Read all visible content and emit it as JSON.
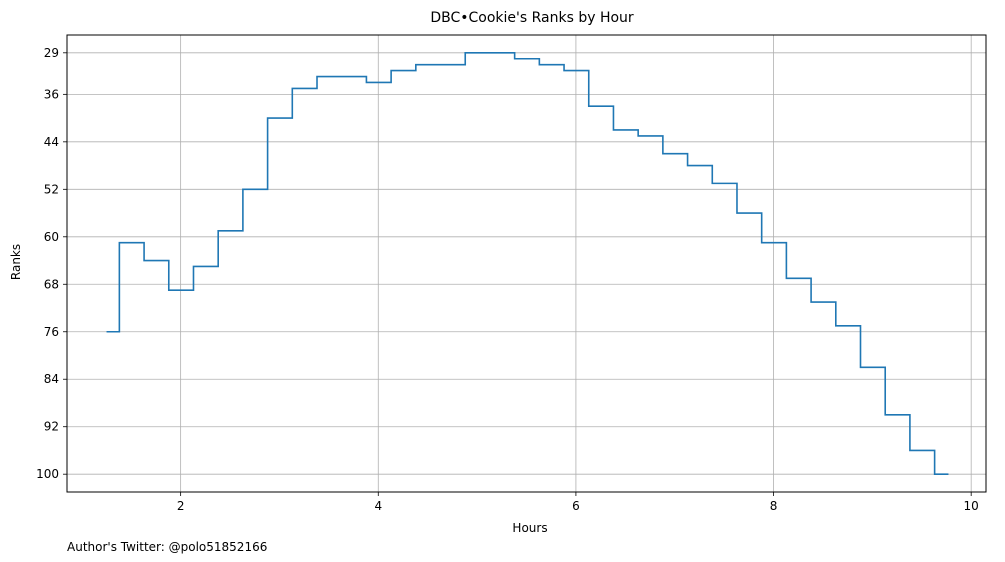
{
  "chart_data": {
    "type": "line",
    "step": "post",
    "title": "DBC•Cookie's Ranks by Hour",
    "xlabel": "Hours",
    "ylabel": "Ranks",
    "xlim": [
      0.85,
      10.15
    ],
    "ylim": [
      103,
      26
    ],
    "y_inverted": true,
    "grid": true,
    "line_color": "#1f77b4",
    "x_ticks": [
      2,
      4,
      6,
      8,
      10
    ],
    "y_ticks": [
      29,
      36,
      44,
      52,
      60,
      68,
      76,
      84,
      92,
      100
    ],
    "series": [
      {
        "x": [
          1.25,
          1.38,
          1.63,
          1.88,
          2.13,
          2.38,
          2.63,
          2.88,
          3.13,
          3.38,
          3.63,
          3.88,
          4.13,
          4.38,
          4.63,
          4.88,
          5.13,
          5.38,
          5.63,
          5.88,
          6.13,
          6.38,
          6.63,
          6.88,
          7.13,
          7.38,
          7.63,
          7.88,
          8.13,
          8.38,
          8.63,
          8.88,
          9.13,
          9.38,
          9.63,
          9.77
        ],
        "y": [
          76,
          61,
          64,
          69,
          65,
          59,
          52,
          40,
          35,
          33,
          33,
          34,
          32,
          31,
          31,
          29,
          29,
          30,
          31,
          32,
          38,
          42,
          43,
          46,
          48,
          51,
          56,
          61,
          67,
          71,
          75,
          82,
          90,
          96,
          100,
          100
        ]
      }
    ]
  },
  "footnote": "Author's Twitter: @polo51852166"
}
